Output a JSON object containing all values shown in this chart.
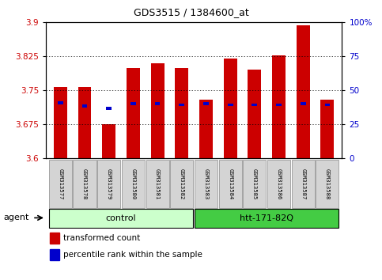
{
  "title": "GDS3515 / 1384600_at",
  "samples": [
    "GSM313577",
    "GSM313578",
    "GSM313579",
    "GSM313580",
    "GSM313581",
    "GSM313582",
    "GSM313583",
    "GSM313584",
    "GSM313585",
    "GSM313586",
    "GSM313587",
    "GSM313588"
  ],
  "red_values": [
    3.758,
    3.758,
    3.675,
    3.8,
    3.81,
    3.8,
    3.73,
    3.82,
    3.795,
    3.828,
    3.893,
    3.73
  ],
  "blue_values": [
    3.722,
    3.715,
    3.71,
    3.72,
    3.72,
    3.718,
    3.72,
    3.718,
    3.718,
    3.718,
    3.72,
    3.718
  ],
  "ymin": 3.6,
  "ymax": 3.9,
  "yticks": [
    3.6,
    3.675,
    3.75,
    3.825,
    3.9
  ],
  "ytick_labels": [
    "3.6",
    "3.675",
    "3.75",
    "3.825",
    "3.9"
  ],
  "y2ticks": [
    0,
    25,
    50,
    75,
    100
  ],
  "y2tick_labels": [
    "0",
    "25",
    "50",
    "75",
    "100%"
  ],
  "control_label": "control",
  "htt_label": "htt-171-82Q",
  "agent_label": "agent",
  "legend_red_label": "transformed count",
  "legend_blue_label": "percentile rank within the sample",
  "bar_color": "#cc0000",
  "blue_color": "#0000cc",
  "control_bg": "#ccffcc",
  "htt_bg": "#44cc44",
  "tick_label_color_left": "#cc0000",
  "tick_label_color_right": "#0000cc",
  "sample_box_bg": "#d4d4d4"
}
